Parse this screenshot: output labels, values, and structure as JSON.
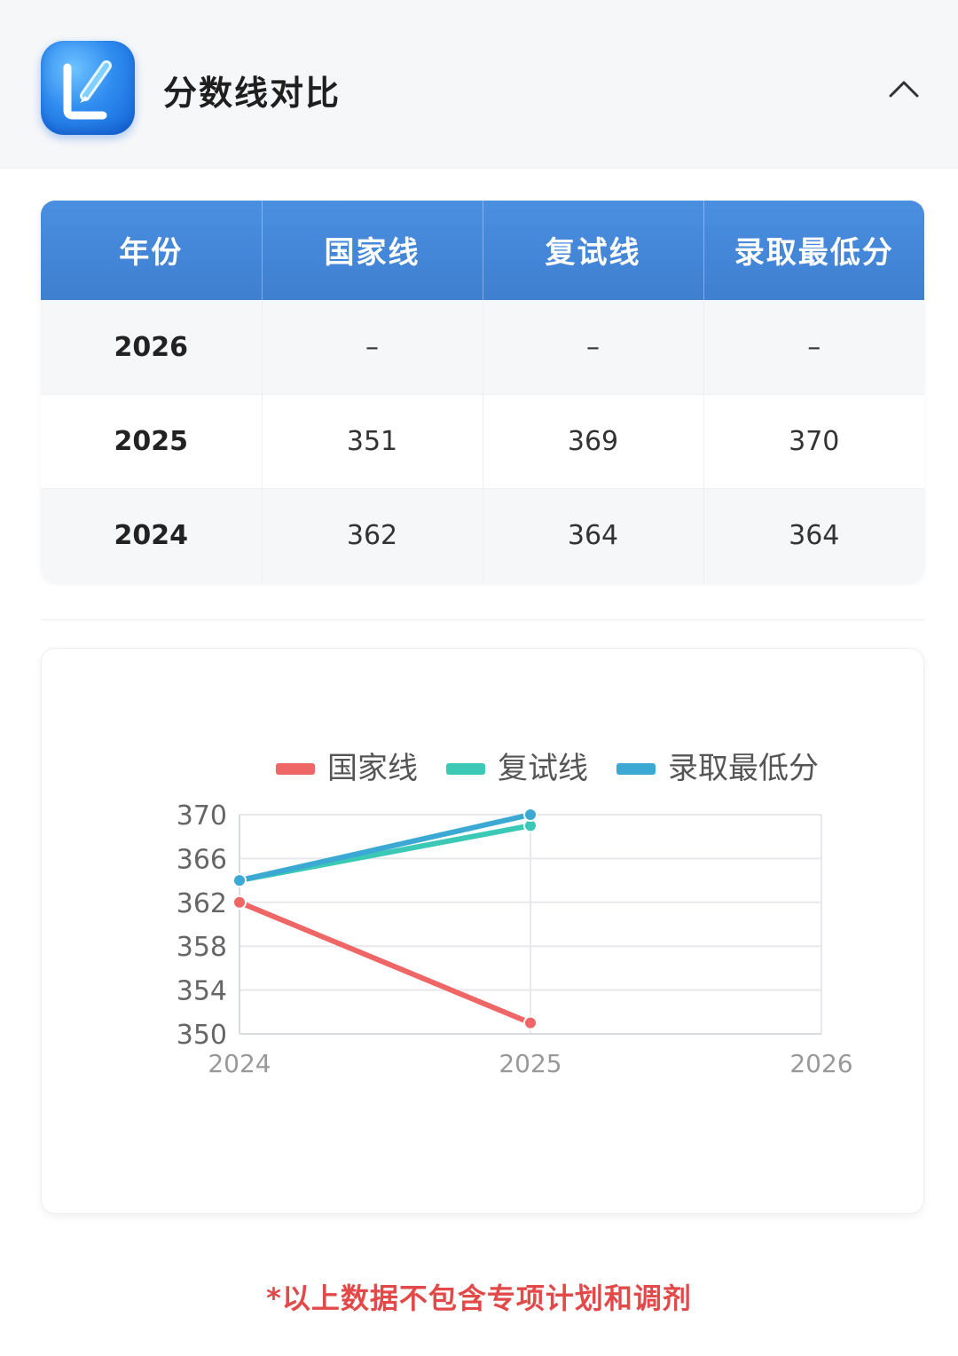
{
  "header": {
    "title": "分数线对比",
    "app_icon": "pencil-edit-icon",
    "collapse_icon": "chevron-up-icon"
  },
  "table": {
    "columns": [
      "年份",
      "国家线",
      "复试线",
      "录取最低分"
    ],
    "rows": [
      [
        "2026",
        "–",
        "–",
        "–"
      ],
      [
        "2025",
        "351",
        "369",
        "370"
      ],
      [
        "2024",
        "362",
        "364",
        "364"
      ]
    ],
    "header_color": "#4585d8"
  },
  "chart_data": {
    "type": "line",
    "x": [
      "2024",
      "2025",
      "2026"
    ],
    "series": [
      {
        "name": "国家线",
        "values": [
          362,
          351,
          null
        ],
        "color": "#ee6666"
      },
      {
        "name": "复试线",
        "values": [
          364,
          369,
          null
        ],
        "color": "#3bc9b5"
      },
      {
        "name": "录取最低分",
        "values": [
          364,
          370,
          null
        ],
        "color": "#3ba9d4"
      }
    ],
    "ylim": [
      350,
      370
    ],
    "yticks": [
      "350",
      "354",
      "358",
      "362",
      "366",
      "370"
    ],
    "grid": true,
    "legend": "top-center"
  },
  "footnote": "*以上数据不包含专项计划和调剂"
}
